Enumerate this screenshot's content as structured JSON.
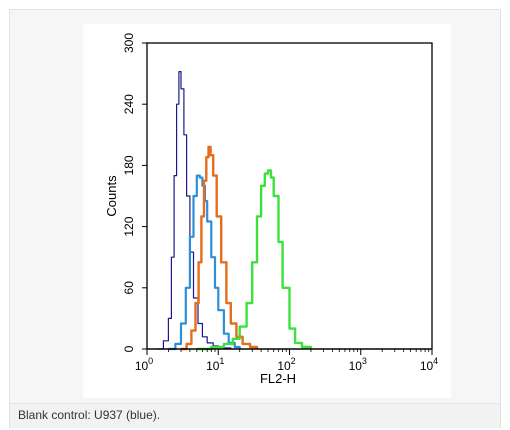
{
  "caption": "Blank control: U937 (blue).",
  "chart_data": {
    "type": "line",
    "xlabel": "FL2-H",
    "ylabel": "Counts",
    "x_scale": "log",
    "xlim": [
      1,
      10000
    ],
    "ylim": [
      0,
      300
    ],
    "x_ticks": [
      {
        "value": 1,
        "base": "10",
        "exp": "0"
      },
      {
        "value": 10,
        "base": "10",
        "exp": "1"
      },
      {
        "value": 100,
        "base": "10",
        "exp": "2"
      },
      {
        "value": 1000,
        "base": "10",
        "exp": "3"
      },
      {
        "value": 10000,
        "base": "10",
        "exp": "4"
      }
    ],
    "y_ticks": [
      0,
      60,
      120,
      180,
      240,
      300
    ],
    "series": [
      {
        "color": "#1a1a8c",
        "stroke_width": 1.2,
        "x": [
          1.4,
          1.7,
          2.0,
          2.2,
          2.4,
          2.6,
          2.8,
          3.0,
          3.3,
          3.6,
          4.0,
          4.5,
          5.2,
          6.0,
          7.0,
          8.5,
          10,
          12,
          15
        ],
        "y": [
          0,
          8,
          30,
          90,
          170,
          240,
          272,
          255,
          210,
          150,
          95,
          50,
          25,
          12,
          6,
          3,
          2,
          1,
          0
        ]
      },
      {
        "color": "#2e8fd8",
        "stroke_width": 2.2,
        "x": [
          2.0,
          2.5,
          3.0,
          3.5,
          4.0,
          4.5,
          5.0,
          5.5,
          6.0,
          6.5,
          7.0,
          8.0,
          9.0,
          10,
          12,
          14,
          17,
          20
        ],
        "y": [
          0,
          5,
          25,
          60,
          110,
          150,
          170,
          168,
          160,
          145,
          125,
          90,
          60,
          38,
          15,
          6,
          2,
          0
        ]
      },
      {
        "color": "#e46e1c",
        "stroke_width": 2.4,
        "x": [
          3.0,
          3.6,
          4.2,
          4.8,
          5.3,
          5.8,
          6.3,
          6.8,
          7.3,
          7.8,
          8.5,
          9.5,
          11,
          13,
          15,
          18,
          22,
          28,
          35
        ],
        "y": [
          0,
          5,
          18,
          45,
          85,
          130,
          165,
          188,
          198,
          190,
          170,
          130,
          85,
          45,
          25,
          12,
          5,
          2,
          0
        ]
      },
      {
        "color": "#3de13d",
        "stroke_width": 2.4,
        "x": [
          5,
          8,
          12,
          16,
          20,
          25,
          30,
          35,
          40,
          45,
          50,
          55,
          60,
          70,
          80,
          100,
          120,
          150,
          200
        ],
        "y": [
          0,
          2,
          5,
          10,
          22,
          45,
          85,
          130,
          160,
          172,
          175,
          168,
          150,
          105,
          60,
          20,
          6,
          2,
          0
        ]
      }
    ]
  }
}
